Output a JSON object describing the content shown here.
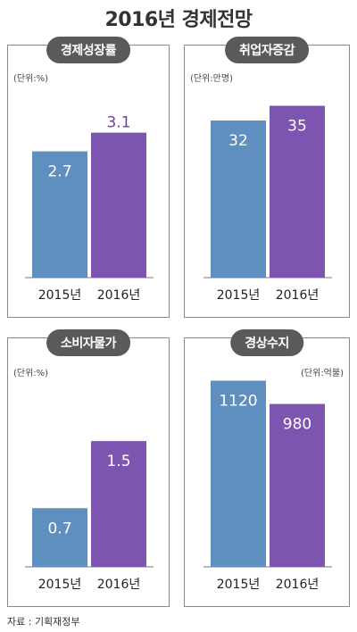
{
  "title": "2016년 경제전망",
  "source": "자료 : 기획재정부",
  "colors": {
    "y2015": "#5e8fbe",
    "y2016": "#7b55b0",
    "label2015": "#ffffff",
    "label2016_outside": "#6a3fa8"
  },
  "chart_data": [
    {
      "type": "bar",
      "title": "경제성장률",
      "unit": "(단위:%)",
      "categories": [
        "2015년",
        "2016년"
      ],
      "values": [
        2.7,
        3.1
      ],
      "value_labels": [
        "2.7",
        "3.1"
      ],
      "ylim": [
        0,
        4.2
      ]
    },
    {
      "type": "bar",
      "title": "취업자증감",
      "unit": "(단위:만명)",
      "categories": [
        "2015년",
        "2016년"
      ],
      "values": [
        32,
        35
      ],
      "value_labels": [
        "32",
        "35"
      ],
      "ylim": [
        0,
        40
      ]
    },
    {
      "type": "bar",
      "title": "소비자물가",
      "unit": "(단위:%)",
      "categories": [
        "2015년",
        "2016년"
      ],
      "values": [
        0.7,
        1.5
      ],
      "value_labels": [
        "0.7",
        "1.5"
      ],
      "ylim": [
        0,
        2.3
      ]
    },
    {
      "type": "bar",
      "title": "경상수지",
      "unit": "(단위:억불)",
      "categories": [
        "2015년",
        "2016년"
      ],
      "values": [
        1120,
        980
      ],
      "value_labels": [
        "1120",
        "980"
      ],
      "ylim": [
        0,
        1160
      ]
    }
  ]
}
